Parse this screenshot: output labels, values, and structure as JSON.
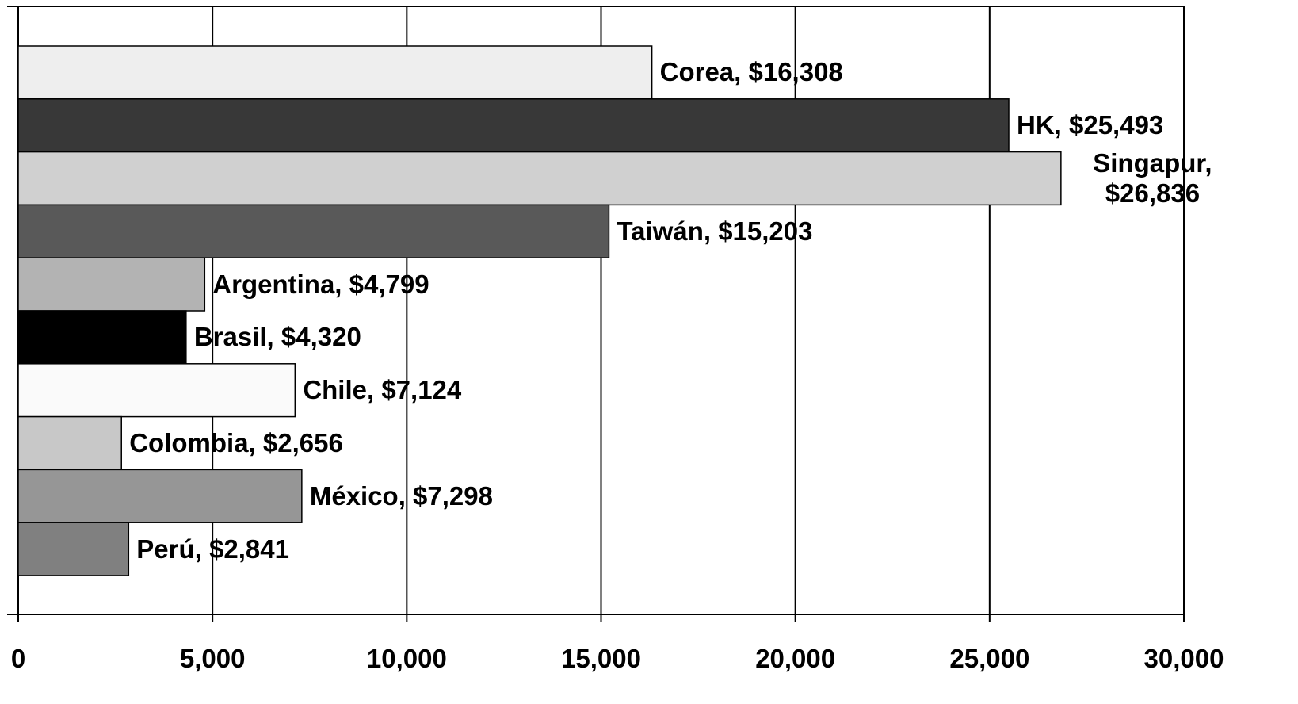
{
  "chart_data": {
    "type": "bar",
    "orientation": "horizontal",
    "values": [
      16308,
      25493,
      26836,
      15203,
      4799,
      4320,
      7124,
      2656,
      7298,
      2841
    ],
    "value_labels": [
      "Corea, $16,308",
      "HK, $25,493",
      "Singapur, $26,836",
      "Taiwán, $15,203",
      "Argentina, $4,799",
      "Brasil, $4,320",
      "Chile, $7,124",
      "Colombia, $2,656",
      "México, $7,298",
      "Perú, $2,841"
    ],
    "colors": [
      "#eeeeee",
      "#383838",
      "#d0d0d0",
      "#595959",
      "#b3b3b3",
      "#000000",
      "#fafafa",
      "#c8c8c8",
      "#969696",
      "#808080"
    ],
    "xlim": [
      0,
      30000
    ],
    "xticks": [
      0,
      {
        "value": 5000,
        "label": "5,000"
      },
      {
        "value": 10000,
        "label": "10,000"
      },
      {
        "value": 15000,
        "label": "15,000"
      },
      {
        "value": 20000,
        "label": "20,000"
      },
      {
        "value": 25000,
        "label": "25,000"
      },
      {
        "value": 30000,
        "label": "30,000"
      }
    ],
    "grid": true
  }
}
